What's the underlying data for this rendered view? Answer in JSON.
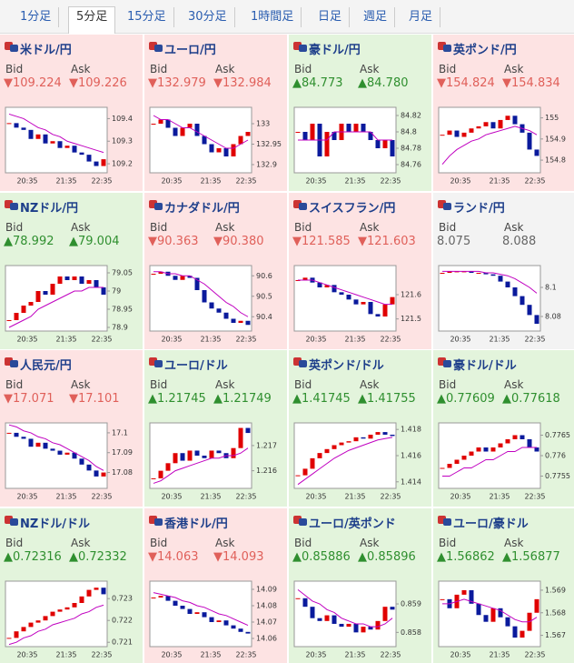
{
  "tabs": [
    "1分足",
    "5分足",
    "15分足",
    "30分足",
    "1時間足",
    "日足",
    "週足",
    "月足"
  ],
  "active_tab": 1,
  "candle_up_color": "#e00000",
  "candle_down_color": "#0a1a9c",
  "ma_color": "#c000c0",
  "cards": [
    {
      "pair": "米ドル/円",
      "direction": "down",
      "bid_label": "Bid",
      "ask_label": "Ask",
      "bid": "▼109.224",
      "ask": "▼109.226",
      "chart": {
        "x_labels": [
          "20:35",
          "21:35",
          "22:35"
        ],
        "ylim": [
          109.16,
          109.45
        ],
        "yticks": [
          109.2,
          109.3,
          109.4
        ],
        "close": [
          109.38,
          109.36,
          109.35,
          109.31,
          109.33,
          109.29,
          109.3,
          109.27,
          109.28,
          109.25,
          109.24,
          109.21,
          109.19,
          109.22
        ],
        "ma": [
          109.42,
          109.41,
          109.4,
          109.38,
          109.36,
          109.35,
          109.33,
          109.32,
          109.3,
          109.29,
          109.28,
          109.27,
          109.26,
          109.25
        ]
      }
    },
    {
      "pair": "ユーロ/円",
      "direction": "down",
      "bid_label": "Bid",
      "ask_label": "Ask",
      "bid": "▼132.979",
      "ask": "▼132.984",
      "chart": {
        "x_labels": [
          "20:35",
          "21:35",
          "22:35"
        ],
        "ylim": [
          132.88,
          133.04
        ],
        "yticks": [
          132.9,
          132.95,
          133
        ],
        "close": [
          133.0,
          133.01,
          132.99,
          132.97,
          132.99,
          133.0,
          132.97,
          132.95,
          132.93,
          132.94,
          132.92,
          132.95,
          132.97,
          132.98
        ],
        "ma": [
          133.02,
          133.01,
          133.01,
          133.0,
          132.99,
          132.99,
          132.98,
          132.97,
          132.96,
          132.95,
          132.94,
          132.94,
          132.95,
          132.96
        ]
      }
    },
    {
      "pair": "豪ドル/円",
      "direction": "up",
      "bid_label": "Bid",
      "ask_label": "Ask",
      "bid": "▲84.773",
      "ask": "▲84.780",
      "chart": {
        "x_labels": [
          "20:35",
          "21:35",
          "22:35"
        ],
        "ylim": [
          84.75,
          84.83
        ],
        "yticks": [
          84.76,
          84.78,
          84.8,
          84.82
        ],
        "close": [
          84.8,
          84.79,
          84.81,
          84.77,
          84.8,
          84.79,
          84.81,
          84.8,
          84.81,
          84.8,
          84.79,
          84.78,
          84.79,
          84.77
        ],
        "ma": [
          84.79,
          84.79,
          84.79,
          84.79,
          84.79,
          84.8,
          84.8,
          84.8,
          84.8,
          84.8,
          84.8,
          84.79,
          84.79,
          84.79
        ]
      }
    },
    {
      "pair": "英ポンド/円",
      "direction": "down",
      "bid_label": "Bid",
      "ask_label": "Ask",
      "bid": "▼154.824",
      "ask": "▼154.834",
      "chart": {
        "x_labels": [
          "20:35",
          "21:35",
          "22:35"
        ],
        "ylim": [
          154.74,
          155.05
        ],
        "yticks": [
          154.8,
          154.9,
          155
        ],
        "close": [
          154.92,
          154.94,
          154.91,
          154.93,
          154.95,
          154.96,
          154.98,
          154.95,
          154.99,
          155.01,
          154.97,
          154.93,
          154.85,
          154.82
        ],
        "ma": [
          154.78,
          154.82,
          154.85,
          154.87,
          154.89,
          154.9,
          154.92,
          154.93,
          154.94,
          154.95,
          154.96,
          154.95,
          154.94,
          154.92
        ]
      }
    },
    {
      "pair": "NZドル/円",
      "direction": "up",
      "bid_label": "Bid",
      "ask_label": "Ask",
      "bid": "▲78.992",
      "ask": "▲79.004",
      "chart": {
        "x_labels": [
          "20:35",
          "21:35",
          "22:35"
        ],
        "ylim": [
          78.89,
          79.07
        ],
        "yticks": [
          78.9,
          78.95,
          79,
          79.05
        ],
        "close": [
          78.92,
          78.94,
          78.96,
          78.97,
          79.0,
          78.99,
          79.02,
          79.04,
          79.03,
          79.04,
          79.02,
          79.03,
          79.01,
          78.99
        ],
        "ma": [
          78.9,
          78.91,
          78.92,
          78.93,
          78.95,
          78.96,
          78.97,
          78.98,
          78.99,
          79.0,
          79.0,
          79.01,
          79.01,
          79.01
        ]
      }
    },
    {
      "pair": "カナダドル/円",
      "direction": "down",
      "bid_label": "Bid",
      "ask_label": "Ask",
      "bid": "▼90.363",
      "ask": "▼90.380",
      "chart": {
        "x_labels": [
          "20:35",
          "21:35",
          "22:35"
        ],
        "ylim": [
          90.33,
          90.65
        ],
        "yticks": [
          90.4,
          90.5,
          90.6
        ],
        "close": [
          90.61,
          90.62,
          90.6,
          90.58,
          90.6,
          90.59,
          90.53,
          90.47,
          90.44,
          90.42,
          90.39,
          90.37,
          90.38,
          90.36
        ],
        "ma": [
          90.62,
          90.62,
          90.61,
          90.61,
          90.6,
          90.6,
          90.58,
          90.56,
          90.53,
          90.5,
          90.47,
          90.45,
          90.42,
          90.4
        ]
      }
    },
    {
      "pair": "スイスフラン/円",
      "direction": "down",
      "bid_label": "Bid",
      "ask_label": "Ask",
      "bid": "▼121.585",
      "ask": "▼121.603",
      "chart": {
        "x_labels": [
          "20:35",
          "21:35",
          "22:35"
        ],
        "ylim": [
          121.45,
          121.72
        ],
        "yticks": [
          121.5,
          121.6
        ],
        "close": [
          121.66,
          121.67,
          121.65,
          121.63,
          121.64,
          121.61,
          121.6,
          121.58,
          121.56,
          121.57,
          121.52,
          121.51,
          121.56,
          121.59
        ],
        "ma": [
          121.66,
          121.66,
          121.66,
          121.65,
          121.64,
          121.63,
          121.62,
          121.61,
          121.6,
          121.59,
          121.58,
          121.57,
          121.56,
          121.56
        ]
      }
    },
    {
      "pair": "ランド/円",
      "direction": "flat",
      "bid_label": "Bid",
      "ask_label": "Ask",
      "bid": "8.075",
      "ask": "8.088",
      "chart": {
        "x_labels": [
          "20:35",
          "21:35",
          "22:35"
        ],
        "ylim": [
          8.07,
          8.115
        ],
        "yticks": [
          8.08,
          8.1
        ],
        "close": [
          8.11,
          8.111,
          8.111,
          8.111,
          8.11,
          8.11,
          8.109,
          8.108,
          8.104,
          8.1,
          8.094,
          8.088,
          8.081,
          8.075
        ],
        "ma": [
          8.111,
          8.111,
          8.111,
          8.111,
          8.111,
          8.111,
          8.11,
          8.11,
          8.109,
          8.108,
          8.106,
          8.103,
          8.1,
          8.096
        ]
      }
    },
    {
      "pair": "人民元/円",
      "direction": "down",
      "bid_label": "Bid",
      "ask_label": "Ask",
      "bid": "▼17.071",
      "ask": "▼17.101",
      "chart": {
        "x_labels": [
          "20:35",
          "21:35",
          "22:35"
        ],
        "ylim": [
          17.072,
          17.105
        ],
        "yticks": [
          17.08,
          17.09,
          17.1
        ],
        "close": [
          17.1,
          17.098,
          17.097,
          17.093,
          17.095,
          17.092,
          17.091,
          17.089,
          17.09,
          17.087,
          17.084,
          17.081,
          17.078,
          17.08
        ],
        "ma": [
          17.104,
          17.103,
          17.101,
          17.1,
          17.098,
          17.097,
          17.095,
          17.094,
          17.092,
          17.09,
          17.088,
          17.086,
          17.083,
          17.081
        ]
      }
    },
    {
      "pair": "ユーロ/ドル",
      "direction": "up",
      "bid_label": "Bid",
      "ask_label": "Ask",
      "bid": "▲1.21745",
      "ask": "▲1.21749",
      "chart": {
        "x_labels": [
          "20:35",
          "21:35",
          "22:35"
        ],
        "ylim": [
          1.2153,
          1.2179
        ],
        "yticks": [
          1.216,
          1.217
        ],
        "close": [
          1.2157,
          1.216,
          1.2163,
          1.2167,
          1.2164,
          1.2168,
          1.2166,
          1.2165,
          1.2168,
          1.2167,
          1.2165,
          1.2169,
          1.2177,
          1.2175
        ],
        "ma": [
          1.2155,
          1.2156,
          1.2158,
          1.216,
          1.2161,
          1.2162,
          1.2163,
          1.2164,
          1.2165,
          1.2165,
          1.2166,
          1.2166,
          1.2167,
          1.2169
        ]
      }
    },
    {
      "pair": "英ポンド/ドル",
      "direction": "up",
      "bid_label": "Bid",
      "ask_label": "Ask",
      "bid": "▲1.41745",
      "ask": "▲1.41755",
      "chart": {
        "x_labels": [
          "20:35",
          "21:35",
          "22:35"
        ],
        "ylim": [
          1.4135,
          1.4185
        ],
        "yticks": [
          1.414,
          1.416,
          1.418
        ],
        "close": [
          1.4145,
          1.415,
          1.4158,
          1.4162,
          1.4165,
          1.4168,
          1.417,
          1.4171,
          1.4174,
          1.4173,
          1.4176,
          1.4178,
          1.4176,
          1.4175
        ],
        "ma": [
          1.4138,
          1.4142,
          1.4146,
          1.415,
          1.4154,
          1.4158,
          1.4161,
          1.4164,
          1.4166,
          1.4168,
          1.417,
          1.4172,
          1.4173,
          1.4174
        ]
      }
    },
    {
      "pair": "豪ドル/ドル",
      "direction": "up",
      "bid_label": "Bid",
      "ask_label": "Ask",
      "bid": "▲0.77609",
      "ask": "▲0.77618",
      "chart": {
        "x_labels": [
          "20:35",
          "21:35",
          "22:35"
        ],
        "ylim": [
          0.7752,
          0.7768
        ],
        "yticks": [
          0.7755,
          0.776,
          0.7765
        ],
        "close": [
          0.7757,
          0.7758,
          0.7759,
          0.776,
          0.7761,
          0.7762,
          0.7761,
          0.7762,
          0.7763,
          0.7764,
          0.7765,
          0.7764,
          0.7762,
          0.7761
        ],
        "ma": [
          0.7755,
          0.7755,
          0.7756,
          0.7757,
          0.7757,
          0.7758,
          0.7759,
          0.7759,
          0.776,
          0.7761,
          0.7761,
          0.7762,
          0.7762,
          0.7762
        ]
      }
    },
    {
      "pair": "NZドル/ドル",
      "direction": "up",
      "bid_label": "Bid",
      "ask_label": "Ask",
      "bid": "▲0.72316",
      "ask": "▲0.72332",
      "chart": {
        "x_labels": [
          "20:35",
          "21:35",
          "22:35"
        ],
        "ylim": [
          0.7208,
          0.7238
        ],
        "yticks": [
          0.721,
          0.722,
          0.723
        ],
        "close": [
          0.7212,
          0.7215,
          0.7217,
          0.7219,
          0.722,
          0.7222,
          0.7224,
          0.7225,
          0.7226,
          0.7228,
          0.7231,
          0.7234,
          0.7235,
          0.7232
        ],
        "ma": [
          0.7209,
          0.721,
          0.7212,
          0.7213,
          0.7215,
          0.7216,
          0.7218,
          0.7219,
          0.722,
          0.7221,
          0.7223,
          0.7224,
          0.7226,
          0.7227
        ]
      }
    },
    {
      "pair": "香港ドル/円",
      "direction": "down",
      "bid_label": "Bid",
      "ask_label": "Ask",
      "bid": "▼14.063",
      "ask": "▼14.093",
      "chart": {
        "x_labels": [
          "20:35",
          "21:35",
          "22:35"
        ],
        "ylim": [
          14.055,
          14.095
        ],
        "yticks": [
          14.06,
          14.07,
          14.08,
          14.09
        ],
        "close": [
          14.085,
          14.086,
          14.083,
          14.08,
          14.078,
          14.075,
          14.076,
          14.073,
          14.07,
          14.071,
          14.068,
          14.066,
          14.064,
          14.063
        ],
        "ma": [
          14.088,
          14.087,
          14.086,
          14.085,
          14.083,
          14.082,
          14.08,
          14.079,
          14.077,
          14.075,
          14.074,
          14.072,
          14.07,
          14.068
        ]
      }
    },
    {
      "pair": "ユーロ/英ポンド",
      "direction": "up",
      "bid_label": "Bid",
      "ask_label": "Ask",
      "bid": "▲0.85886",
      "ask": "▲0.85896",
      "chart": {
        "x_labels": [
          "20:35",
          "21:35",
          "22:35"
        ],
        "ylim": [
          0.8575,
          0.8598
        ],
        "yticks": [
          0.858,
          0.859
        ],
        "close": [
          0.8592,
          0.8589,
          0.8585,
          0.8584,
          0.8586,
          0.8583,
          0.8582,
          0.8583,
          0.858,
          0.8582,
          0.8581,
          0.8584,
          0.8589,
          0.8588
        ],
        "ma": [
          0.8595,
          0.8593,
          0.8591,
          0.859,
          0.8588,
          0.8587,
          0.8585,
          0.8584,
          0.8583,
          0.8583,
          0.8582,
          0.8582,
          0.8583,
          0.8585
        ]
      }
    },
    {
      "pair": "ユーロ/豪ドル",
      "direction": "up",
      "bid_label": "Bid",
      "ask_label": "Ask",
      "bid": "▲1.56862",
      "ask": "▲1.56877",
      "chart": {
        "x_labels": [
          "20:35",
          "21:35",
          "22:35"
        ],
        "ylim": [
          1.5665,
          1.5694
        ],
        "yticks": [
          1.567,
          1.568,
          1.569
        ],
        "close": [
          1.5686,
          1.5682,
          1.5688,
          1.569,
          1.5684,
          1.5679,
          1.5676,
          1.5682,
          1.5678,
          1.5674,
          1.5669,
          1.5672,
          1.568,
          1.5686
        ],
        "ma": [
          1.5684,
          1.5684,
          1.5685,
          1.5686,
          1.5685,
          1.5684,
          1.5683,
          1.5682,
          1.5681,
          1.5679,
          1.5677,
          1.5676,
          1.5676,
          1.5678
        ]
      }
    }
  ]
}
